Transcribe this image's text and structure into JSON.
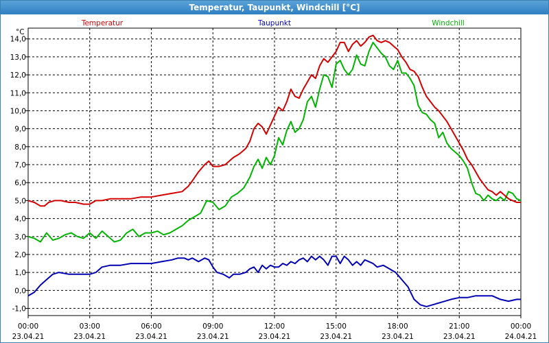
{
  "window": {
    "title": "Temperatur, Taupunkt, Windchill [°C]"
  },
  "chart_data": {
    "type": "line",
    "unit_label": "°C",
    "grid": true,
    "ylim": [
      -1.4,
      14.6
    ],
    "y_ticks": [
      -1.0,
      0.0,
      1.0,
      2.0,
      3.0,
      4.0,
      5.0,
      6.0,
      7.0,
      8.0,
      9.0,
      10.0,
      11.0,
      12.0,
      13.0,
      14.0
    ],
    "y_tick_labels": [
      "-1,0",
      "0,0",
      "1,0",
      "2,0",
      "3,0",
      "4,0",
      "5,0",
      "6,0",
      "7,0",
      "8,0",
      "9,0",
      "10,0",
      "11,0",
      "12,0",
      "13,0",
      "14,0"
    ],
    "xlim": [
      0,
      24
    ],
    "x_ticks": [
      0,
      3,
      6,
      9,
      12,
      15,
      18,
      21,
      24
    ],
    "x_tick_times": [
      "00:00",
      "03:00",
      "06:00",
      "09:00",
      "12:00",
      "15:00",
      "18:00",
      "21:00",
      "00:00"
    ],
    "x_tick_dates": [
      "23.04.21",
      "23.04.21",
      "23.04.21",
      "23.04.21",
      "23.04.21",
      "23.04.21",
      "23.04.21",
      "23.04.21",
      "24.04.21"
    ],
    "legend_placement": "top",
    "series": [
      {
        "name": "Temperatur",
        "color": "#d40000",
        "x": [
          0.0,
          0.3,
          0.6,
          0.8,
          1.0,
          1.3,
          1.6,
          2.0,
          2.3,
          2.7,
          3.0,
          3.3,
          3.6,
          4.0,
          4.5,
          5.0,
          5.5,
          6.0,
          6.5,
          7.0,
          7.5,
          7.8,
          8.0,
          8.3,
          8.6,
          8.8,
          9.0,
          9.3,
          9.6,
          10.0,
          10.3,
          10.6,
          10.8,
          11.0,
          11.2,
          11.4,
          11.6,
          11.8,
          12.0,
          12.2,
          12.4,
          12.6,
          12.8,
          13.0,
          13.2,
          13.4,
          13.6,
          13.8,
          14.0,
          14.2,
          14.4,
          14.6,
          14.8,
          15.0,
          15.2,
          15.4,
          15.6,
          15.8,
          16.0,
          16.2,
          16.4,
          16.6,
          16.8,
          17.0,
          17.2,
          17.4,
          17.6,
          17.8,
          18.0,
          18.2,
          18.4,
          18.6,
          18.8,
          19.0,
          19.2,
          19.4,
          19.6,
          19.8,
          20.0,
          20.2,
          20.4,
          20.6,
          20.8,
          21.0,
          21.2,
          21.4,
          21.6,
          21.8,
          22.0,
          22.2,
          22.4,
          22.6,
          22.8,
          23.0,
          23.2,
          23.4,
          23.6,
          23.8,
          24.0
        ],
        "values": [
          5.0,
          4.9,
          4.7,
          4.7,
          4.9,
          5.0,
          5.0,
          4.9,
          4.9,
          4.8,
          4.8,
          5.0,
          5.0,
          5.1,
          5.1,
          5.1,
          5.2,
          5.2,
          5.3,
          5.4,
          5.5,
          5.8,
          6.1,
          6.6,
          7.0,
          7.2,
          6.9,
          6.9,
          7.0,
          7.4,
          7.6,
          7.9,
          8.3,
          9.0,
          9.3,
          9.1,
          8.7,
          9.2,
          9.7,
          10.2,
          10.0,
          10.5,
          11.2,
          10.8,
          10.7,
          11.2,
          11.6,
          12.0,
          11.8,
          12.5,
          12.9,
          12.7,
          13.0,
          13.3,
          13.8,
          13.8,
          13.3,
          13.7,
          13.9,
          13.6,
          13.8,
          14.1,
          14.2,
          13.9,
          13.8,
          13.9,
          13.8,
          13.6,
          13.4,
          13.0,
          12.7,
          12.3,
          12.2,
          11.9,
          11.3,
          10.8,
          10.5,
          10.2,
          10.0,
          9.7,
          9.4,
          9.0,
          8.6,
          8.2,
          7.8,
          7.3,
          7.0,
          6.6,
          6.2,
          5.9,
          5.6,
          5.5,
          5.3,
          5.5,
          5.3,
          5.1,
          5.0,
          4.9,
          4.9
        ]
      },
      {
        "name": "Taupunkt",
        "color": "#0000b4",
        "x": [
          0.0,
          0.3,
          0.6,
          0.9,
          1.2,
          1.5,
          2.0,
          2.5,
          3.0,
          3.3,
          3.6,
          4.0,
          4.5,
          5.0,
          5.5,
          6.0,
          6.5,
          7.0,
          7.3,
          7.6,
          7.8,
          8.0,
          8.3,
          8.6,
          8.8,
          9.0,
          9.2,
          9.5,
          9.8,
          10.0,
          10.3,
          10.6,
          10.8,
          11.0,
          11.2,
          11.4,
          11.6,
          11.8,
          12.0,
          12.2,
          12.4,
          12.6,
          12.8,
          13.0,
          13.2,
          13.4,
          13.6,
          13.8,
          14.0,
          14.2,
          14.4,
          14.6,
          14.8,
          15.0,
          15.2,
          15.4,
          15.6,
          15.8,
          16.0,
          16.2,
          16.4,
          16.6,
          16.8,
          17.0,
          17.3,
          17.6,
          17.9,
          18.2,
          18.5,
          18.8,
          19.1,
          19.4,
          19.7,
          20.0,
          20.3,
          20.6,
          21.0,
          21.4,
          21.8,
          22.2,
          22.6,
          23.0,
          23.4,
          23.8,
          24.0
        ],
        "values": [
          -0.3,
          -0.1,
          0.3,
          0.6,
          0.9,
          1.0,
          0.9,
          0.9,
          0.9,
          1.0,
          1.3,
          1.4,
          1.4,
          1.5,
          1.5,
          1.5,
          1.6,
          1.7,
          1.8,
          1.8,
          1.7,
          1.8,
          1.6,
          1.8,
          1.7,
          1.3,
          1.0,
          0.9,
          0.7,
          0.9,
          0.9,
          1.0,
          1.2,
          1.3,
          1.0,
          1.4,
          1.2,
          1.4,
          1.3,
          1.3,
          1.5,
          1.4,
          1.6,
          1.5,
          1.7,
          1.8,
          1.6,
          1.9,
          1.7,
          1.9,
          1.7,
          1.4,
          1.9,
          1.9,
          1.5,
          1.9,
          1.7,
          1.4,
          1.6,
          1.4,
          1.7,
          1.6,
          1.5,
          1.3,
          1.4,
          1.2,
          1.0,
          0.6,
          0.2,
          -0.5,
          -0.8,
          -0.9,
          -0.8,
          -0.7,
          -0.6,
          -0.5,
          -0.4,
          -0.4,
          -0.3,
          -0.3,
          -0.3,
          -0.5,
          -0.6,
          -0.5,
          -0.5
        ]
      },
      {
        "name": "Windchill",
        "color": "#00b400",
        "x": [
          0.0,
          0.3,
          0.6,
          0.9,
          1.2,
          1.5,
          1.8,
          2.1,
          2.4,
          2.7,
          3.0,
          3.3,
          3.6,
          3.9,
          4.2,
          4.5,
          4.8,
          5.1,
          5.4,
          5.7,
          6.0,
          6.3,
          6.6,
          6.9,
          7.2,
          7.5,
          7.8,
          8.1,
          8.4,
          8.7,
          9.0,
          9.3,
          9.6,
          9.9,
          10.2,
          10.5,
          10.8,
          11.0,
          11.2,
          11.4,
          11.6,
          11.8,
          12.0,
          12.2,
          12.4,
          12.6,
          12.8,
          13.0,
          13.2,
          13.4,
          13.6,
          13.8,
          14.0,
          14.2,
          14.4,
          14.6,
          14.8,
          15.0,
          15.2,
          15.4,
          15.6,
          15.8,
          16.0,
          16.2,
          16.4,
          16.6,
          16.8,
          17.0,
          17.2,
          17.4,
          17.6,
          17.8,
          18.0,
          18.2,
          18.4,
          18.6,
          18.8,
          19.0,
          19.2,
          19.4,
          19.6,
          19.8,
          20.0,
          20.2,
          20.4,
          20.6,
          20.8,
          21.0,
          21.2,
          21.4,
          21.6,
          21.8,
          22.0,
          22.2,
          22.4,
          22.6,
          22.8,
          23.0,
          23.2,
          23.4,
          23.6,
          23.8,
          24.0
        ],
        "values": [
          3.0,
          2.9,
          2.7,
          3.2,
          2.8,
          2.9,
          3.1,
          3.2,
          3.0,
          2.9,
          3.2,
          2.9,
          3.3,
          3.0,
          2.7,
          2.8,
          3.2,
          3.4,
          3.0,
          3.2,
          3.2,
          3.3,
          3.1,
          3.2,
          3.4,
          3.6,
          3.9,
          4.1,
          4.3,
          5.0,
          4.9,
          4.5,
          4.7,
          5.2,
          5.4,
          5.7,
          6.3,
          6.9,
          7.3,
          6.8,
          7.4,
          7.0,
          7.5,
          8.5,
          8.1,
          8.9,
          9.4,
          8.8,
          9.0,
          9.5,
          10.5,
          10.8,
          10.2,
          11.2,
          12.0,
          11.9,
          11.3,
          12.6,
          12.8,
          12.3,
          12.0,
          12.3,
          13.1,
          12.6,
          12.5,
          13.3,
          13.8,
          13.5,
          13.2,
          13.0,
          12.5,
          12.3,
          12.8,
          12.1,
          12.1,
          11.8,
          11.4,
          10.3,
          9.9,
          9.8,
          9.5,
          9.3,
          8.5,
          8.8,
          8.2,
          7.9,
          7.7,
          7.5,
          7.2,
          6.8,
          6.0,
          5.4,
          5.3,
          5.0,
          5.3,
          5.1,
          5.0,
          5.2,
          5.0,
          5.5,
          5.4,
          5.1,
          5.0
        ]
      }
    ]
  }
}
